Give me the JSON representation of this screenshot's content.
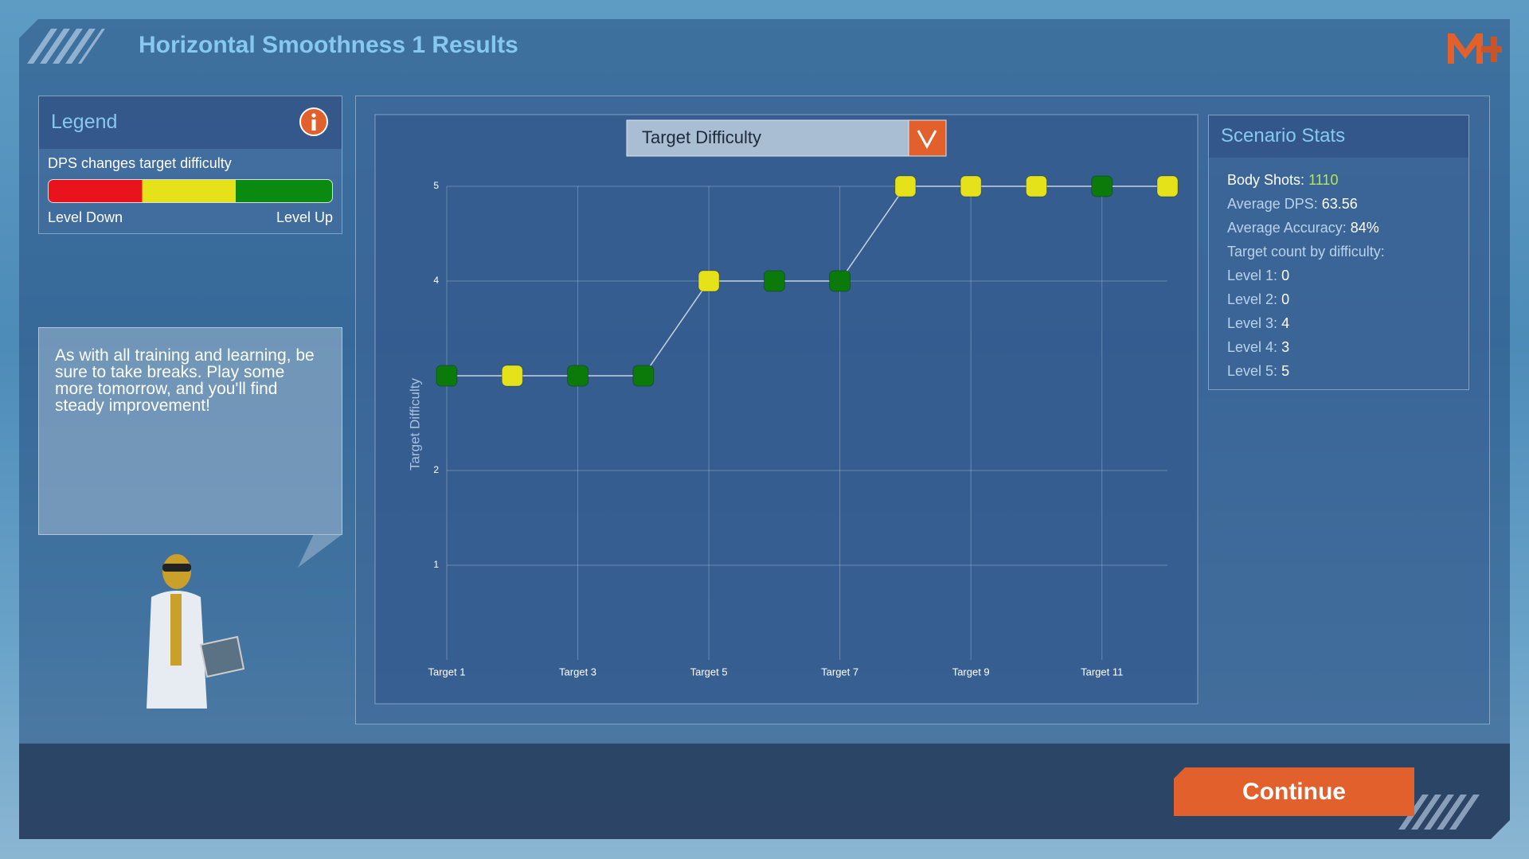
{
  "header": {
    "title": "Horizontal Smoothness 1 Results"
  },
  "legend": {
    "title": "Legend",
    "description": "DPS changes target difficulty",
    "low_label": "Level Down",
    "high_label": "Level Up"
  },
  "tip": "As with all training and learning, be sure to take breaks. Play some more tomorrow, and you'll find steady improvement!",
  "chart_data": {
    "type": "line",
    "title": "Target Difficulty",
    "y_label": "Target Difficulty",
    "categories": [
      "Target 1",
      null,
      "Target 3",
      null,
      "Target 5",
      null,
      "Target 7",
      null,
      "Target 9",
      null,
      "Target 11",
      null
    ],
    "values": [
      3,
      3,
      3,
      3,
      4,
      4,
      4,
      5,
      5,
      5,
      5,
      5
    ],
    "point_colors": [
      "#0b7a0b",
      "#e6e21a",
      "#0b7a0b",
      "#0b7a0b",
      "#e6e21a",
      "#0b7a0b",
      "#0b7a0b",
      "#e6e21a",
      "#e6e21a",
      "#e6e21a",
      "#0b7a0b",
      "#e6e21a"
    ],
    "line_color": "#c8d4e2",
    "ylim": [
      0,
      5
    ],
    "yticks": [
      1,
      2,
      4,
      5
    ],
    "grid": true
  },
  "stats": {
    "title": "Scenario Stats",
    "rows": [
      {
        "label": "Body Shots:",
        "value": "1110"
      },
      {
        "label": "Average DPS:",
        "value": "63.56"
      },
      {
        "label": "Average Accuracy:",
        "value": "84%"
      },
      {
        "label": "Target count by difficulty:"
      },
      {
        "label": "Level 1:",
        "value": "0"
      },
      {
        "label": "Level 2:",
        "value": "0"
      },
      {
        "label": "Level 3:",
        "value": "4"
      },
      {
        "label": "Level 4:",
        "value": "3"
      },
      {
        "label": "Level 5:",
        "value": "5"
      }
    ]
  },
  "button": {
    "label": "Continue"
  }
}
